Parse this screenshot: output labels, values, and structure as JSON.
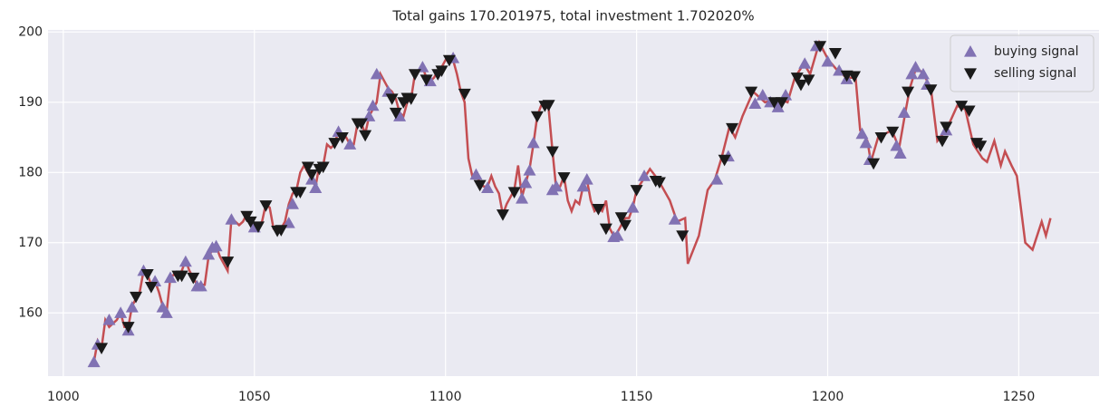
{
  "chart_data": {
    "type": "line",
    "title": "Total gains 170.201975, total investment 1.702020%",
    "xlim": [
      996,
      1271
    ],
    "ylim": [
      151,
      200.3
    ],
    "xticks": [
      1000,
      1050,
      1100,
      1150,
      1200,
      1250
    ],
    "yticks": [
      160,
      170,
      180,
      190,
      200
    ],
    "grid": true,
    "legend": "upper right",
    "series": [
      {
        "color": "#c44e52",
        "x": [
          1008,
          1009,
          1010,
          1011,
          1012,
          1013,
          1014,
          1015,
          1016,
          1017,
          1018,
          1019,
          1020,
          1021,
          1022,
          1023,
          1024,
          1025,
          1026,
          1027,
          1028,
          1029,
          1030,
          1031,
          1032,
          1033,
          1034,
          1035,
          1036,
          1037,
          1038,
          1039,
          1040,
          1041,
          1042,
          1043,
          1044,
          1045,
          1046,
          1047,
          1048,
          1049,
          1050,
          1051,
          1052,
          1053,
          1054,
          1055,
          1056,
          1057,
          1058,
          1059,
          1060,
          1061,
          1062,
          1063,
          1064,
          1065,
          1066,
          1067,
          1068,
          1069,
          1070,
          1071,
          1072,
          1073,
          1074,
          1075,
          1076,
          1077,
          1078,
          1079,
          1080,
          1081,
          1082,
          1083,
          1084,
          1085,
          1086,
          1087,
          1088,
          1089,
          1090,
          1091,
          1092,
          1093,
          1094,
          1095,
          1096,
          1097,
          1098,
          1099,
          1100,
          1101,
          1102,
          1103,
          1104,
          1105,
          1106,
          1107,
          1108,
          1109,
          1110,
          1111,
          1112,
          1113,
          1114,
          1115,
          1116,
          1117,
          1118,
          1119,
          1120,
          1121,
          1122,
          1123,
          1124,
          1125,
          1126,
          1127,
          1128,
          1129,
          1130,
          1131,
          1132,
          1133,
          1134,
          1135,
          1136,
          1137,
          1138,
          1139,
          1140,
          1141,
          1142,
          1143,
          1144,
          1145,
          1146,
          1147,
          1148,
          1149,
          1150,
          1153.5,
          1155.6,
          1158.7,
          1160.6,
          1162.7,
          1163.4,
          1166.3,
          1168.6,
          1170.5,
          1172.2,
          1174.3,
          1175.8,
          1177.7,
          1180.5,
          1183.6,
          1187.1,
          1189.5,
          1191.4,
          1193.8,
          1195.4,
          1197.8,
          1200.2,
          1202.6,
          1205,
          1207.3,
          1208.5,
          1210.4,
          1211.3,
          1213.2,
          1216.8,
          1218.7,
          1220.3,
          1221.5,
          1223.2,
          1225.1,
          1227,
          1228.7,
          1231,
          1233.9,
          1236,
          1238.1,
          1240.5,
          1241.7,
          1243.6,
          1245.3,
          1246.4,
          1248.1,
          1249.5,
          1251.7,
          1253.6,
          1256,
          1257.1,
          1258.3
        ],
        "values": [
          153,
          156,
          155,
          159,
          158,
          158.5,
          159,
          160,
          158,
          158,
          161,
          162,
          163,
          166,
          165.5,
          164,
          164.5,
          163,
          161,
          160,
          165,
          165.5,
          165,
          166,
          167.5,
          166,
          165,
          164,
          164,
          164,
          168,
          169,
          169.5,
          168,
          167,
          166,
          173.5,
          173,
          172.5,
          173,
          174,
          173,
          172,
          172.5,
          173,
          175.5,
          175,
          172,
          171.5,
          172,
          173,
          175.5,
          177,
          177.5,
          180,
          181,
          180,
          179,
          178,
          181,
          181,
          184,
          183.5,
          184,
          186,
          185,
          185,
          184,
          184,
          187,
          187,
          185.5,
          188,
          189,
          190,
          194,
          193,
          192,
          191.5,
          190.5,
          188.5,
          188,
          190,
          190.5,
          194,
          194.5,
          195,
          193.5,
          193,
          193.5,
          194.5,
          195,
          196,
          196.5,
          196,
          194,
          191.5,
          190,
          182,
          179.5,
          180,
          178.5,
          178,
          178,
          179.5,
          178,
          177,
          174,
          175.5,
          176.5,
          177.5,
          181,
          176.5,
          178.5,
          180.5,
          184,
          188,
          189.5,
          190,
          189,
          183,
          177.5,
          178,
          179.5,
          176,
          174.5,
          176,
          175.5,
          178,
          179,
          176,
          174.5,
          175,
          174.5,
          176,
          172,
          171,
          171.5,
          172.5,
          173.5,
          173.5,
          175,
          177.5,
          180.5,
          179,
          176,
          173,
          173.5,
          167,
          171,
          177.5,
          179,
          182,
          186.5,
          185,
          188,
          191.5,
          190,
          190.5,
          190,
          193.5,
          195.5,
          194,
          198.5,
          196,
          194.5,
          193.5,
          193.5,
          186,
          184.5,
          181.5,
          185,
          186,
          183.5,
          188.5,
          192,
          195,
          194,
          192,
          184.5,
          186,
          189.5,
          189,
          184,
          182,
          181.5,
          184.5,
          181,
          183,
          181,
          179.5,
          170,
          169,
          173,
          171,
          173.5
        ]
      },
      {
        "name": "buying signal",
        "color": "#8172b3",
        "marker": "triangle-up",
        "x": [
          1008,
          1009,
          1012,
          1015,
          1017,
          1018,
          1021,
          1024,
          1026,
          1027,
          1028,
          1032,
          1035,
          1036,
          1038,
          1039,
          1040,
          1044,
          1050,
          1059,
          1060,
          1065,
          1066,
          1072,
          1075,
          1080,
          1081,
          1082,
          1085,
          1088,
          1094,
          1096,
          1102,
          1108,
          1111,
          1120,
          1121,
          1122,
          1123,
          1128,
          1129,
          1136,
          1137,
          1144,
          1145,
          1149,
          1152,
          1160,
          1171,
          1174,
          1181,
          1183,
          1185,
          1187,
          1189,
          1194,
          1197,
          1200,
          1203,
          1205,
          1209,
          1210,
          1211,
          1218,
          1219,
          1220,
          1222,
          1223,
          1225,
          1226,
          1231
        ],
        "values": [
          153,
          155.5,
          159,
          160,
          157.5,
          160.8,
          166,
          164.5,
          160.8,
          160,
          165,
          167.3,
          163.8,
          163.8,
          168.3,
          169.3,
          169.5,
          173.3,
          172.2,
          172.8,
          175.5,
          179,
          177.8,
          185.8,
          184,
          188,
          189.5,
          194,
          191.5,
          188,
          195,
          193,
          196.3,
          179.7,
          177.8,
          176.3,
          178.5,
          180.3,
          184.2,
          177.5,
          178,
          178,
          179,
          170.8,
          171,
          175,
          179.5,
          173.3,
          179,
          182.3,
          189.8,
          191,
          190,
          189.3,
          191,
          195.5,
          198,
          195.8,
          194.5,
          193.3,
          185.5,
          184.2,
          181.8,
          183.8,
          182.7,
          188.5,
          194,
          195,
          194,
          192.5,
          186
        ]
      },
      {
        "name": "selling signal",
        "color": "#1a1a1a",
        "marker": "triangle-down",
        "x": [
          1010,
          1017,
          1019,
          1022,
          1023,
          1030,
          1031,
          1034,
          1043,
          1048,
          1049,
          1051,
          1053,
          1056,
          1057,
          1061,
          1062,
          1064,
          1065,
          1067,
          1068,
          1071,
          1073,
          1077,
          1078,
          1079,
          1086,
          1087,
          1089,
          1090,
          1091,
          1092,
          1095,
          1098,
          1099,
          1101,
          1105,
          1109,
          1115,
          1118,
          1124,
          1126,
          1127,
          1128,
          1131,
          1140,
          1142,
          1146,
          1147,
          1150,
          1155,
          1156,
          1162,
          1173,
          1175,
          1180,
          1186,
          1188,
          1192,
          1193,
          1195,
          1198,
          1202,
          1205,
          1207,
          1212,
          1214,
          1217,
          1221,
          1227,
          1230,
          1231,
          1235,
          1237,
          1239,
          1240
        ],
        "values": [
          155,
          158,
          162.3,
          165.5,
          163.7,
          165.3,
          165.3,
          165,
          167.3,
          173.8,
          173,
          172.3,
          175.3,
          171.7,
          171.8,
          177.2,
          177.2,
          180.8,
          179.7,
          180.5,
          180.8,
          184.2,
          185,
          187,
          187,
          185.3,
          190.5,
          188.5,
          190,
          190.6,
          190.5,
          194,
          193.2,
          194,
          194.5,
          196,
          191.2,
          178.2,
          174,
          177.2,
          188,
          189.5,
          189.6,
          183,
          179.3,
          174.8,
          172,
          173.6,
          172.5,
          177.5,
          178.8,
          178.6,
          171,
          181.8,
          186.3,
          191.5,
          190,
          190,
          193.5,
          192.5,
          193.2,
          198,
          197,
          193.8,
          193.7,
          181.3,
          185,
          185.8,
          191.5,
          191.8,
          184.5,
          186.5,
          189.5,
          188.8,
          184.2,
          183.8
        ]
      }
    ]
  }
}
